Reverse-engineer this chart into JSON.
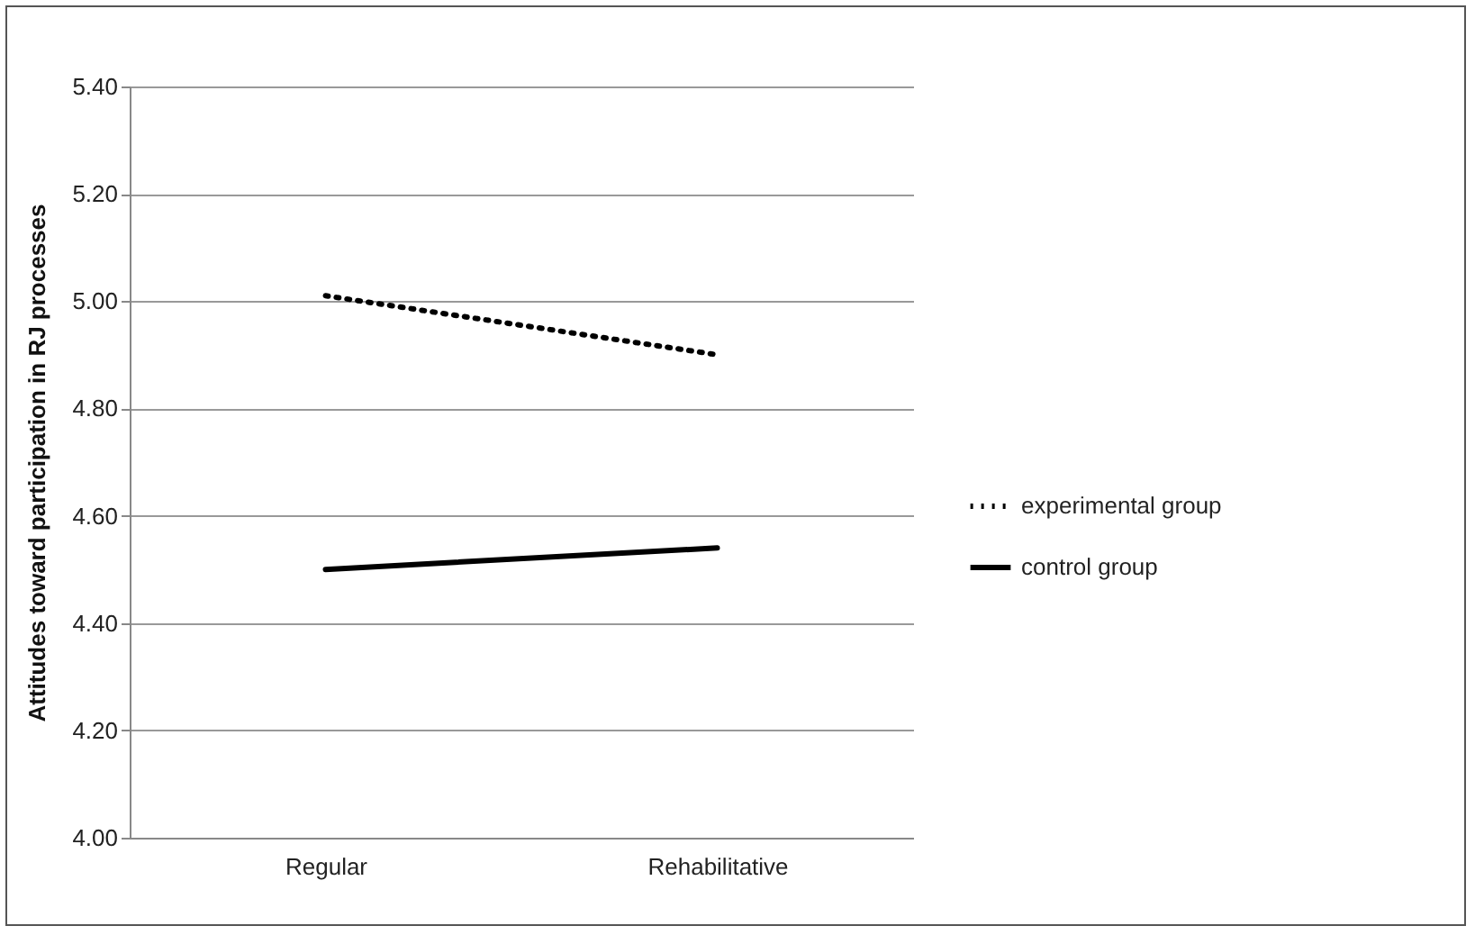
{
  "chart_data": {
    "type": "line",
    "ylabel": "Attitudes toward participation in RJ processes",
    "categories": [
      "Regular",
      "Rehabilitative"
    ],
    "series": [
      {
        "name": "experimental group",
        "color": "#000000",
        "line_style": "dotted",
        "values": [
          5.01,
          4.9
        ]
      },
      {
        "name": "control group",
        "color": "#000000",
        "line_style": "solid",
        "values": [
          4.5,
          4.54
        ]
      }
    ],
    "ylim": [
      4.0,
      5.4
    ],
    "yticks": [
      {
        "value": 4.0,
        "label": "4.00"
      },
      {
        "value": 4.2,
        "label": "4.20"
      },
      {
        "value": 4.4,
        "label": "4.40"
      },
      {
        "value": 4.6,
        "label": "4.60"
      },
      {
        "value": 4.8,
        "label": "4.80"
      },
      {
        "value": 5.0,
        "label": "5.00"
      },
      {
        "value": 5.2,
        "label": "5.20"
      },
      {
        "value": 5.4,
        "label": "5.40"
      }
    ],
    "grid": "y",
    "legend": "right",
    "marker": "none"
  }
}
